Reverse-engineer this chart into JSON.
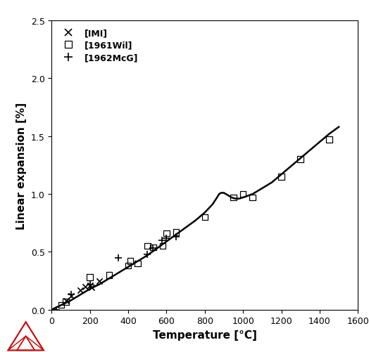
{
  "title": "",
  "xlabel": "Temperature [°C]",
  "ylabel": "Linear expansion [%]",
  "xlim": [
    0,
    1600
  ],
  "ylim": [
    0.0,
    2.5
  ],
  "xticks": [
    0,
    200,
    400,
    600,
    800,
    1000,
    1200,
    1400,
    1600
  ],
  "yticks": [
    0.0,
    0.5,
    1.0,
    1.5,
    2.0,
    2.5
  ],
  "IMI_x": [
    75,
    100,
    150,
    175,
    200,
    210,
    250
  ],
  "IMI_y": [
    0.08,
    0.12,
    0.17,
    0.2,
    0.21,
    0.19,
    0.25
  ],
  "Wil_x": [
    50,
    75,
    200,
    300,
    400,
    410,
    450,
    500,
    530,
    580,
    600,
    650,
    800,
    950,
    1000,
    1050,
    1200,
    1300,
    1450
  ],
  "Wil_y": [
    0.04,
    0.07,
    0.28,
    0.3,
    0.38,
    0.42,
    0.4,
    0.55,
    0.54,
    0.55,
    0.66,
    0.67,
    0.8,
    0.97,
    1.0,
    0.97,
    1.15,
    1.3,
    1.47
  ],
  "McG_x": [
    25,
    100,
    200,
    350,
    500,
    530,
    575,
    600,
    650
  ],
  "McG_y": [
    0.0,
    0.13,
    0.22,
    0.45,
    0.48,
    0.53,
    0.6,
    0.62,
    0.63
  ],
  "curve_x": [
    0,
    50,
    100,
    150,
    200,
    250,
    300,
    350,
    400,
    450,
    500,
    550,
    600,
    650,
    700,
    750,
    800,
    840,
    860,
    875,
    885,
    900,
    910,
    920,
    940,
    960,
    980,
    1000,
    1050,
    1100,
    1150,
    1200,
    1250,
    1300,
    1350,
    1400,
    1450,
    1500
  ],
  "curve_y": [
    0.0,
    0.04,
    0.08,
    0.13,
    0.18,
    0.22,
    0.27,
    0.32,
    0.37,
    0.42,
    0.47,
    0.53,
    0.59,
    0.65,
    0.71,
    0.77,
    0.84,
    0.91,
    0.96,
    1.0,
    1.01,
    1.01,
    1.0,
    0.99,
    0.97,
    0.96,
    0.96,
    0.97,
    1.0,
    1.05,
    1.1,
    1.17,
    1.24,
    1.31,
    1.38,
    1.45,
    1.52,
    1.58
  ],
  "line_color": "#000000",
  "marker_color": "#000000",
  "bg_color": "#ffffff",
  "legend_labels": [
    "[IMI]",
    "[1961Wil]",
    "[1962McG]"
  ]
}
